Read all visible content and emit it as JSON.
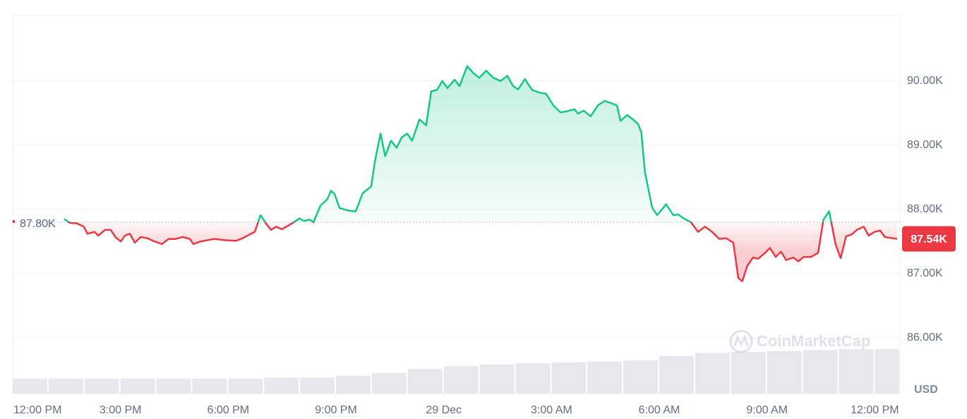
{
  "chart_data": {
    "type": "line",
    "x": [
      1.43,
      1.59,
      1.79,
      1.98,
      2.08,
      2.28,
      2.38,
      2.57,
      2.73,
      2.87,
      3.01,
      3.12,
      3.26,
      3.4,
      3.56,
      3.75,
      3.95,
      4.15,
      4.34,
      4.54,
      4.73,
      4.93,
      5.03,
      5.23,
      5.42,
      5.62,
      5.91,
      6.21,
      6.4,
      6.6,
      6.74,
      6.9,
      7.05,
      7.19,
      7.33,
      7.49,
      7.68,
      7.88,
      7.98,
      8.11,
      8.27,
      8.37,
      8.57,
      8.76,
      8.86,
      8.96,
      9.1,
      9.35,
      9.55,
      9.74,
      9.98,
      10.08,
      10.24,
      10.37,
      10.53,
      10.69,
      10.83,
      10.98,
      11.12,
      11.32,
      11.51,
      11.65,
      11.81,
      11.96,
      12.1,
      12.3,
      12.44,
      12.65,
      12.83,
      12.99,
      13.18,
      13.38,
      13.58,
      13.77,
      13.93,
      14.07,
      14.26,
      14.46,
      14.66,
      14.85,
      15.05,
      15.25,
      15.44,
      15.64,
      15.74,
      15.89,
      16.09,
      16.29,
      16.48,
      16.68,
      16.82,
      16.92,
      17.11,
      17.27,
      17.41,
      17.5,
      17.6,
      17.8,
      17.94,
      18.09,
      18.19,
      18.39,
      18.53,
      18.68,
      18.88,
      19.08,
      19.27,
      19.47,
      19.67,
      19.86,
      20.06,
      20.2,
      20.31,
      20.45,
      20.61,
      20.75,
      20.94,
      21.08,
      21.24,
      21.39,
      21.53,
      21.73,
      21.87,
      22.02,
      22.22,
      22.42,
      22.57,
      22.73,
      22.91,
      23.05,
      23.2,
      23.36,
      23.5,
      23.69,
      23.83,
      23.99,
      24.15,
      24.28,
      24.62
    ],
    "values": [
      87.85,
      87.79,
      87.78,
      87.73,
      87.62,
      87.65,
      87.59,
      87.68,
      87.68,
      87.56,
      87.5,
      87.59,
      87.62,
      87.48,
      87.57,
      87.55,
      87.5,
      87.46,
      87.54,
      87.54,
      87.57,
      87.54,
      87.46,
      87.5,
      87.52,
      87.54,
      87.52,
      87.51,
      87.55,
      87.61,
      87.65,
      87.91,
      87.78,
      87.68,
      87.73,
      87.69,
      87.75,
      87.82,
      87.86,
      87.82,
      87.84,
      87.8,
      88.06,
      88.16,
      88.29,
      88.24,
      88.02,
      87.98,
      87.97,
      88.25,
      88.36,
      88.74,
      89.18,
      88.83,
      89.07,
      88.96,
      89.12,
      89.18,
      89.07,
      89.4,
      89.31,
      89.84,
      89.86,
      90.0,
      89.89,
      90.02,
      89.92,
      90.23,
      90.12,
      90.05,
      90.16,
      90.05,
      90.0,
      90.08,
      89.92,
      89.87,
      90.03,
      89.86,
      89.82,
      89.8,
      89.62,
      89.51,
      89.53,
      89.56,
      89.49,
      89.54,
      89.45,
      89.62,
      89.69,
      89.65,
      89.62,
      89.38,
      89.47,
      89.4,
      89.33,
      89.2,
      88.58,
      88.03,
      87.91,
      88.01,
      88.08,
      87.91,
      87.92,
      87.86,
      87.8,
      87.65,
      87.73,
      87.65,
      87.54,
      87.55,
      87.48,
      86.93,
      86.88,
      87.12,
      87.25,
      87.23,
      87.32,
      87.4,
      87.26,
      87.34,
      87.21,
      87.25,
      87.19,
      87.26,
      87.26,
      87.32,
      87.84,
      87.97,
      87.45,
      87.24,
      87.58,
      87.61,
      87.68,
      87.73,
      87.59,
      87.65,
      87.67,
      87.57,
      87.54
    ],
    "up_color": "#16c784",
    "down_color": "#ea3943",
    "baseline": {
      "value": 87.8,
      "label": "87.80K"
    },
    "current_price": {
      "value": 87.54,
      "label": "87.54K"
    },
    "xlim": [
      0,
      24.7
    ],
    "xticks": [
      {
        "value": 0,
        "label": "12:00 PM"
      },
      {
        "value": 3,
        "label": "3:00 PM"
      },
      {
        "value": 6,
        "label": "6:00 PM"
      },
      {
        "value": 9,
        "label": "9:00 PM"
      },
      {
        "value": 12,
        "label": "29 Dec"
      },
      {
        "value": 15,
        "label": "3:00 AM"
      },
      {
        "value": 18,
        "label": "6:00 AM"
      },
      {
        "value": 21,
        "label": "9:00 AM"
      },
      {
        "value": 24,
        "label": "12:00 PM"
      }
    ],
    "ylim": [
      85.13,
      91.02
    ],
    "yticks": [
      {
        "value": 86,
        "label": "86.00K"
      },
      {
        "value": 87,
        "label": "87.00K"
      },
      {
        "value": 88,
        "label": "88.00K"
      },
      {
        "value": 89,
        "label": "89.00K"
      },
      {
        "value": 90,
        "label": "90.00K"
      }
    ],
    "grid": true,
    "volume": {
      "color": "#e6e8ec",
      "axis": "y2",
      "x": [
        0,
        1,
        2,
        3,
        4,
        5,
        6,
        7,
        8,
        9,
        10,
        11,
        12,
        13,
        14,
        15,
        16,
        17,
        18,
        19,
        20,
        21,
        22,
        23,
        24
      ],
      "values": [
        16,
        16,
        16,
        16,
        16,
        16,
        16,
        17,
        17,
        19,
        22,
        26,
        29,
        31,
        32,
        33,
        34,
        35,
        40,
        43,
        44,
        45,
        46,
        47,
        47
      ]
    },
    "y2lim": [
      0,
      400
    ],
    "currency": "USD",
    "watermark": "CoinMarketCap"
  }
}
